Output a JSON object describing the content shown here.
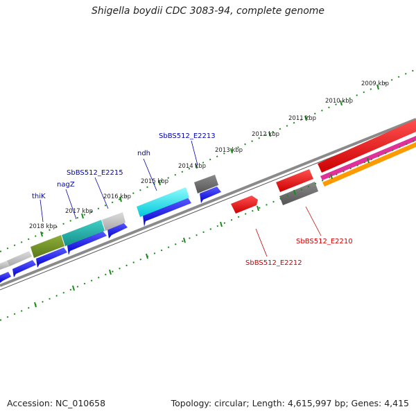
{
  "title": "Shigella boydii CDC 3083-94, complete genome",
  "footer": {
    "accession_label": "Accession:",
    "accession": "NC_010658",
    "topology_text": "Topology: circular; Length: 4,615,997 bp; Genes: 4,415"
  },
  "kbp_labels": [
    "2018 kbp",
    "2017 kbp",
    "2016 kbp",
    "2015 kbp",
    "2014 kbp",
    "2013 kbp",
    "2012 kbp",
    "2011 kbp",
    "2010 kbp",
    "2009 kbp"
  ],
  "gene_labels": {
    "thik": "thiK",
    "nagz": "nagZ",
    "e2215": "SbBS512_E2215",
    "ndh": "ndh",
    "e2213": "SbBS512_E2213",
    "e2212": "SbBS512_E2212",
    "e2210": "SbBS512_E2210"
  },
  "colors": {
    "backbone": "#8a8a8a",
    "ticks": "#1a8a1a",
    "forward_blue": "#0000ee",
    "cds_gray": "#b8b8b8",
    "cds_dark_gray": "#666666",
    "cds_olive": "#6b8e23",
    "cds_teal": "#20b2aa",
    "cds_cyan": "#00e5ee",
    "cds_red": "#ee0000",
    "cds_pink": "#e0309a",
    "cds_orange": "#ff9900",
    "label_blue": "#0000b0",
    "label_red": "#cc0000"
  }
}
